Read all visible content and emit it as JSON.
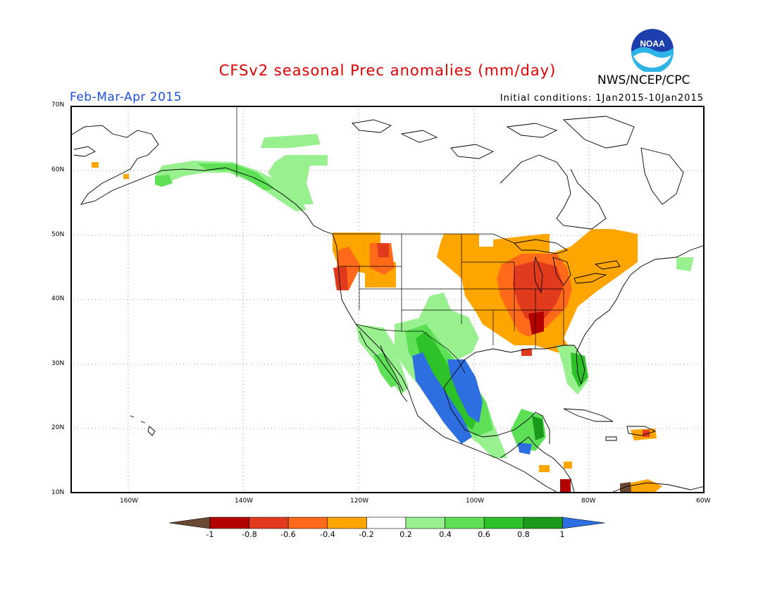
{
  "header": {
    "title": "CFSv2 seasonal Prec anomalies (mm/day)",
    "period": "Feb-Mar-Apr 2015",
    "initial_conditions": "Initial conditions: 1Jan2015-10Jan2015",
    "agency": "NWS/NCEP/CPC",
    "logo_text": "NOAA"
  },
  "map": {
    "lat_labels": [
      "70N",
      "60N",
      "50N",
      "40N",
      "30N",
      "20N",
      "10N"
    ],
    "lon_labels": [
      "160W",
      "140W",
      "120W",
      "100W",
      "80W",
      "60W"
    ]
  },
  "legend": {
    "labels": [
      "-1",
      "-0.8",
      "-0.6",
      "-0.4",
      "-0.2",
      "0.2",
      "0.4",
      "0.6",
      "0.8",
      "1"
    ],
    "colors": {
      "below_neg1": "#6b4a35",
      "neg_0_8": "#b30000",
      "neg_0_6": "#e23a1c",
      "neg_0_4": "#ff6a1a",
      "neg_0_2": "#ffa500",
      "neutral": "#ffffff",
      "pos_0_2": "#98f08f",
      "pos_0_4": "#5de055",
      "pos_0_6": "#2fc12a",
      "pos_0_8": "#1a9a1a",
      "above_1": "#2d6fe0"
    }
  }
}
